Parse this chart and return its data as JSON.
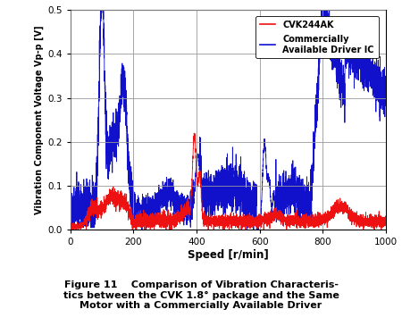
{
  "title": "",
  "xlabel": "Speed [r/min]",
  "ylabel": "Vibration Component Voltage Vp-p [V]",
  "xlim": [
    0,
    1000
  ],
  "ylim": [
    0,
    0.5
  ],
  "xticks": [
    0,
    200,
    400,
    600,
    800,
    1000
  ],
  "yticks": [
    0,
    0.1,
    0.2,
    0.3,
    0.4,
    0.5
  ],
  "cvk_color": "#ee1111",
  "comm_color": "#1111cc",
  "caption_line1": "Figure 11    Comparison of Vibration Characteris-",
  "caption_line2": "tics between the CVK 1.8° package and the Same",
  "caption_line3": "Motor with a Commercially Available Driver",
  "background_color": "#ffffff",
  "grid_color": "#999999"
}
